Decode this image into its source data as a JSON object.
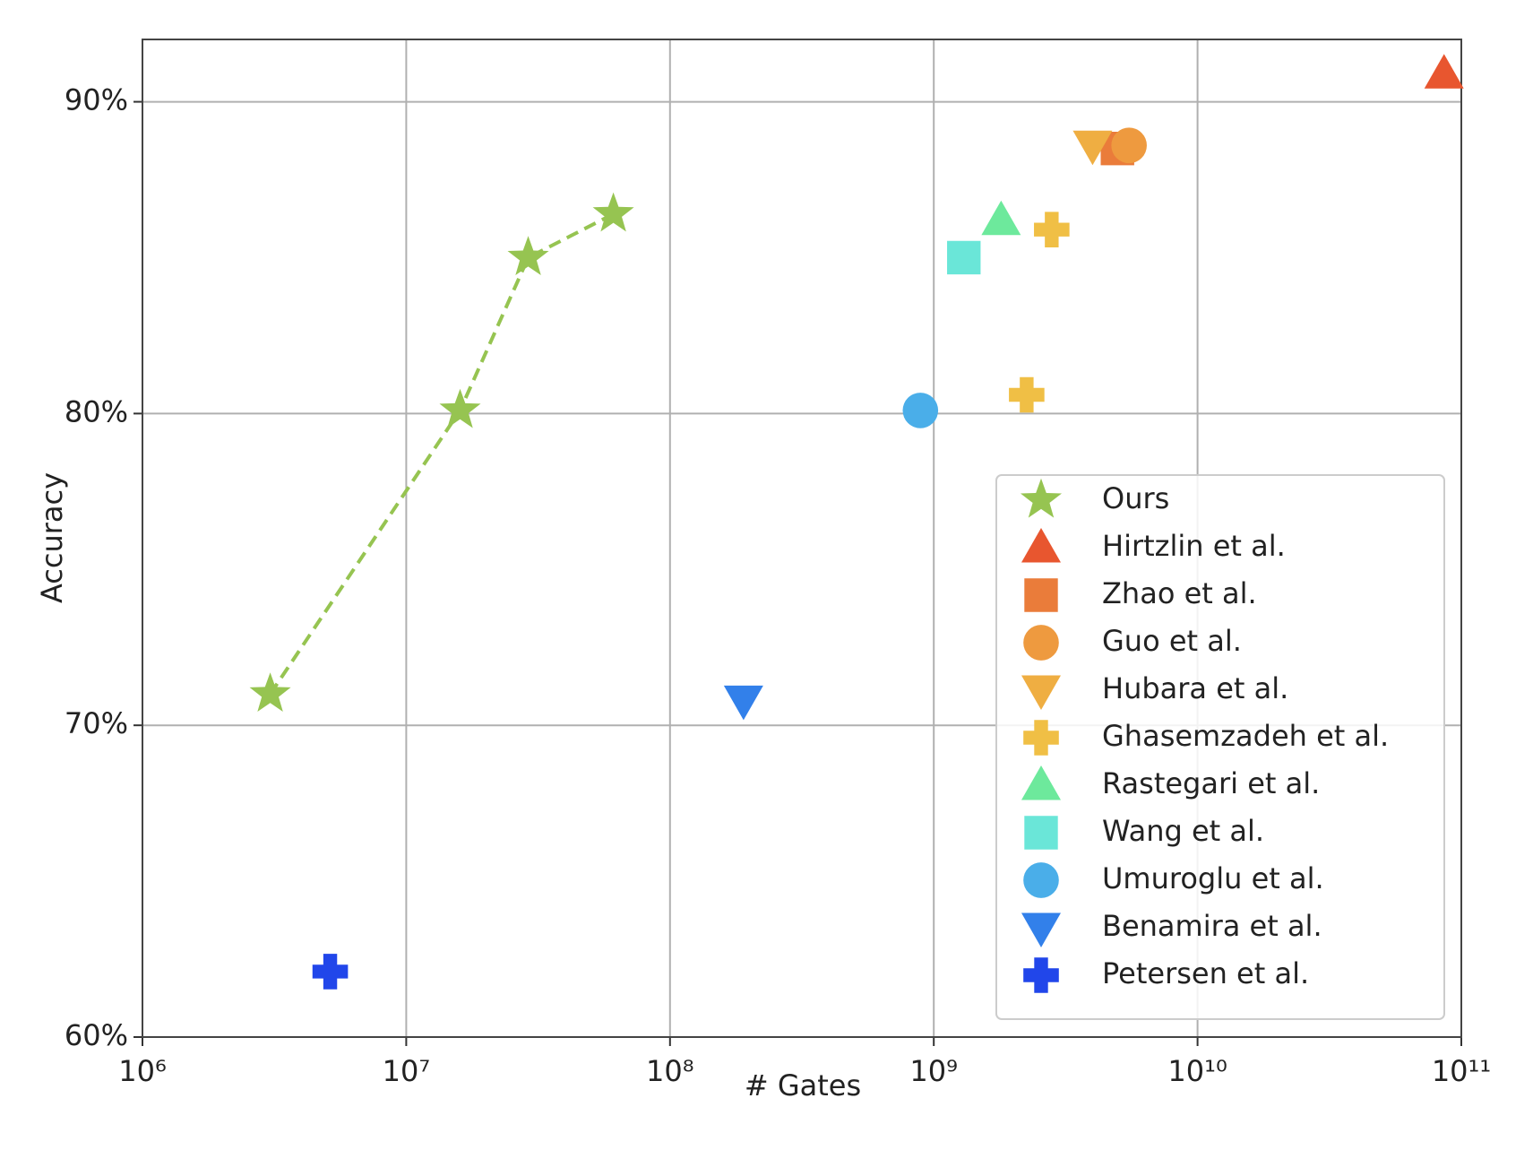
{
  "chart_data": {
    "type": "scatter",
    "x_label": "# Gates",
    "y_label": "Accuracy",
    "xscale": "log",
    "grid": true,
    "legend": "lower right",
    "xlim": [
      1000000,
      100000000000
    ],
    "xticks": [
      {
        "value": 1000000,
        "label": "10⁶"
      },
      {
        "value": 10000000,
        "label": "10⁷"
      },
      {
        "value": 100000000,
        "label": "10⁸"
      },
      {
        "value": 1000000000,
        "label": "10⁹"
      },
      {
        "value": 10000000000,
        "label": "10¹⁰"
      },
      {
        "value": 100000000000,
        "label": "10¹¹"
      }
    ],
    "ylim": [
      60,
      92
    ],
    "yticks": [
      {
        "value": 60,
        "label": "60%"
      },
      {
        "value": 70,
        "label": "70%"
      },
      {
        "value": 80,
        "label": "80%"
      },
      {
        "value": 90,
        "label": "90%"
      }
    ],
    "series": [
      {
        "name": "Ours",
        "color": "#96c451",
        "marker": "star",
        "line": "dashed",
        "x": [
          3050000,
          16000000,
          29000000,
          61000000
        ],
        "y": [
          71.0,
          80.1,
          85.0,
          86.4
        ]
      },
      {
        "name": "Hirtzlin et al.",
        "color": "#e8562f",
        "marker": "triangle-up",
        "x": [
          86000000000
        ],
        "y": [
          90.9
        ]
      },
      {
        "name": "Zhao et al.",
        "color": "#ea7c3a",
        "marker": "square",
        "x": [
          4970000000
        ],
        "y": [
          88.5
        ]
      },
      {
        "name": "Guo et al.",
        "color": "#ee9a3f",
        "marker": "circle",
        "x": [
          5500000000
        ],
        "y": [
          88.6
        ]
      },
      {
        "name": "Hubara et al.",
        "color": "#efae42",
        "marker": "triangle-down",
        "x": [
          4000000000
        ],
        "y": [
          88.6
        ]
      },
      {
        "name": "Ghasemzadeh et al.",
        "color": "#f0bf45",
        "marker": "plus",
        "x": [
          2800000000,
          2250000000
        ],
        "y": [
          85.9,
          80.6
        ]
      },
      {
        "name": "Rastegari et al.",
        "color": "#6de99c",
        "marker": "triangle-up",
        "x": [
          1800000000
        ],
        "y": [
          86.2
        ]
      },
      {
        "name": "Wang et al.",
        "color": "#6ae6d8",
        "marker": "square",
        "x": [
          1300000000
        ],
        "y": [
          85.0
        ]
      },
      {
        "name": "Umuroglu et al.",
        "color": "#4aaee9",
        "marker": "circle",
        "x": [
          890000000
        ],
        "y": [
          80.1
        ]
      },
      {
        "name": "Benamira et al.",
        "color": "#3280ea",
        "marker": "triangle-down",
        "x": [
          190000000
        ],
        "y": [
          70.8
        ]
      },
      {
        "name": "Petersen et al.",
        "color": "#2146ea",
        "marker": "plus",
        "x": [
          5150000
        ],
        "y": [
          62.1
        ]
      }
    ]
  }
}
